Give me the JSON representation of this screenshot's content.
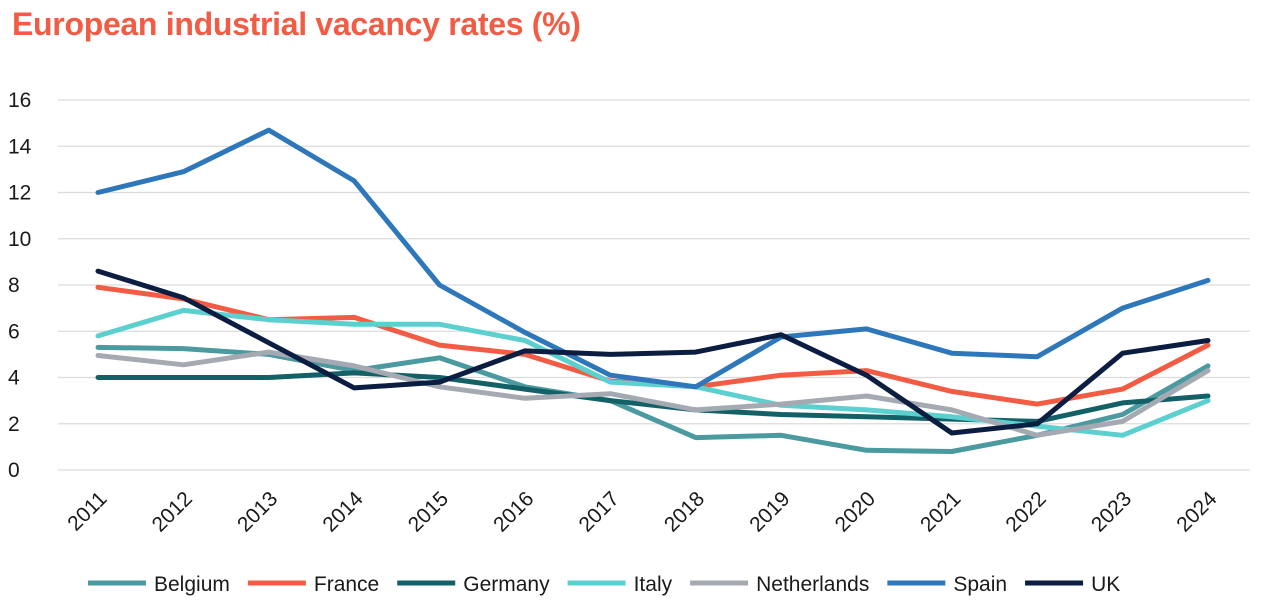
{
  "chart_data": {
    "type": "line",
    "title": "European industrial vacancy rates (%)",
    "xlabel": "",
    "ylabel": "",
    "ylim": [
      0,
      16
    ],
    "yticks": [
      0,
      2,
      4,
      6,
      8,
      10,
      12,
      14,
      16
    ],
    "x": [
      "2011",
      "2012",
      "2013",
      "2014",
      "2015",
      "2016",
      "2017",
      "2018",
      "2019",
      "2020",
      "2021",
      "2022",
      "2023",
      "2024"
    ],
    "grid": true,
    "legend_position": "bottom",
    "series": [
      {
        "name": "Belgium",
        "color": "#4a9aa0",
        "values": [
          5.3,
          5.25,
          5.0,
          4.3,
          4.85,
          3.6,
          3.0,
          1.4,
          1.5,
          0.85,
          0.8,
          1.5,
          2.4,
          4.5
        ]
      },
      {
        "name": "France",
        "color": "#f25c45",
        "values": [
          7.9,
          7.4,
          6.5,
          6.6,
          5.4,
          5.0,
          3.85,
          3.6,
          4.1,
          4.3,
          3.4,
          2.85,
          3.5,
          5.4
        ]
      },
      {
        "name": "Germany",
        "color": "#136067",
        "values": [
          4.0,
          4.0,
          4.0,
          4.2,
          4.0,
          3.5,
          3.0,
          2.6,
          2.4,
          2.3,
          2.2,
          2.1,
          2.9,
          3.2
        ]
      },
      {
        "name": "Italy",
        "color": "#5ccfcf",
        "values": [
          5.8,
          6.9,
          6.5,
          6.3,
          6.3,
          5.6,
          3.8,
          3.6,
          2.8,
          2.6,
          2.3,
          1.9,
          1.5,
          3.0
        ]
      },
      {
        "name": "Netherlands",
        "color": "#a5a9b2",
        "values": [
          4.95,
          4.55,
          5.1,
          4.5,
          3.6,
          3.1,
          3.3,
          2.6,
          2.85,
          3.2,
          2.6,
          1.5,
          2.1,
          4.3
        ]
      },
      {
        "name": "Spain",
        "color": "#2e77bb",
        "values": [
          12.0,
          12.9,
          14.7,
          12.5,
          8.0,
          5.95,
          4.1,
          3.6,
          5.75,
          6.1,
          5.05,
          4.9,
          7.0,
          8.2
        ]
      },
      {
        "name": "UK",
        "color": "#0b1d40",
        "values": [
          8.6,
          7.45,
          5.5,
          3.55,
          3.8,
          5.15,
          5.0,
          5.1,
          5.85,
          4.1,
          1.6,
          2.0,
          5.05,
          5.6
        ]
      }
    ]
  }
}
